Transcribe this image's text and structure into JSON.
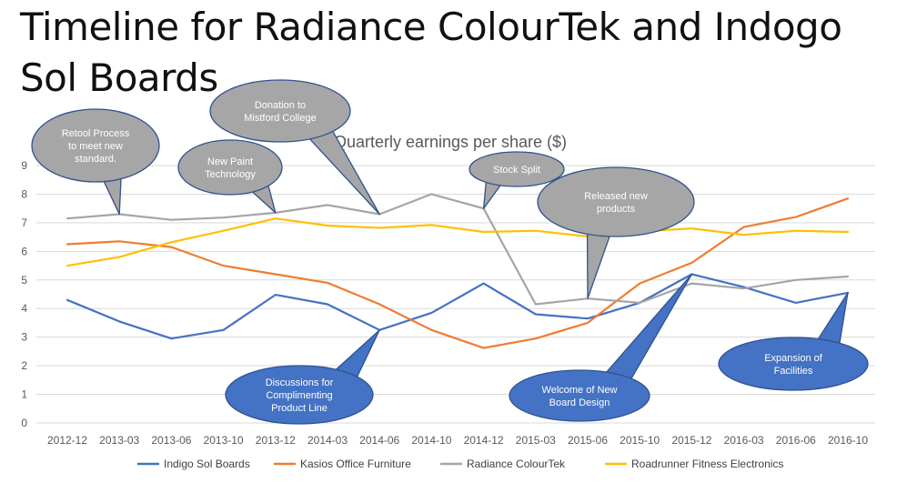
{
  "slide_title": "Timeline for Radiance ColourTek and Indogo Sol Boards",
  "chart_data": {
    "type": "line",
    "title": "Quarterly earnings per share ($)",
    "xlabel": "",
    "ylabel": "",
    "ylim": [
      0,
      9
    ],
    "yticks": [
      0,
      1,
      2,
      3,
      4,
      5,
      6,
      7,
      8,
      9
    ],
    "grid": true,
    "legend_position": "bottom",
    "categories": [
      "2012-12",
      "2013-03",
      "2013-06",
      "2013-10",
      "2013-12",
      "2014-03",
      "2014-06",
      "2014-10",
      "2014-12",
      "2015-03",
      "2015-06",
      "2015-10",
      "2015-12",
      "2016-03",
      "2016-06",
      "2016-10"
    ],
    "series": [
      {
        "name": "Indigo Sol Boards",
        "color": "#4472C4",
        "values": [
          4.3,
          3.55,
          2.95,
          3.25,
          4.48,
          4.15,
          3.25,
          3.85,
          4.88,
          3.8,
          3.65,
          4.2,
          5.2,
          4.75,
          4.2,
          4.55
        ]
      },
      {
        "name": "Kasios Office Furniture",
        "color": "#ED7D31",
        "values": [
          6.25,
          6.35,
          6.15,
          5.5,
          5.2,
          4.9,
          4.15,
          3.25,
          2.62,
          2.95,
          3.5,
          4.88,
          5.6,
          6.85,
          7.2,
          7.85
        ]
      },
      {
        "name": "Radiance ColourTek",
        "color": "#A5A5A5",
        "values": [
          7.15,
          7.3,
          7.1,
          7.18,
          7.35,
          7.62,
          7.3,
          8.0,
          7.5,
          4.15,
          4.35,
          4.2,
          4.88,
          4.7,
          5.0,
          5.12
        ]
      },
      {
        "name": "Roadrunner Fitness Electronics",
        "color": "#FFC000",
        "values": [
          5.5,
          5.8,
          6.32,
          6.72,
          7.15,
          6.9,
          6.82,
          6.92,
          6.68,
          6.72,
          6.52,
          6.7,
          6.8,
          6.58,
          6.72,
          6.68
        ]
      }
    ],
    "annotations": [
      {
        "lines": [
          "Retool Process",
          "to meet new",
          "standard."
        ],
        "style": "gray",
        "category": "2013-03",
        "series": "Radiance ColourTek"
      },
      {
        "lines": [
          "New Paint",
          "Technology"
        ],
        "style": "gray",
        "category": "2013-12",
        "series": "Radiance ColourTek"
      },
      {
        "lines": [
          "Donation to",
          "Mistford College"
        ],
        "style": "gray",
        "category": "2014-06",
        "series": "Radiance ColourTek"
      },
      {
        "lines": [
          "Stock Split"
        ],
        "style": "gray",
        "category": "2014-12",
        "series": "Radiance ColourTek"
      },
      {
        "lines": [
          "Released new",
          "products"
        ],
        "style": "gray",
        "category": "2015-06",
        "series": "Radiance ColourTek"
      },
      {
        "lines": [
          "Discussions for",
          "Complimenting",
          "Product Line"
        ],
        "style": "blue",
        "category": "2014-06",
        "series": "Indigo Sol Boards"
      },
      {
        "lines": [
          "Welcome of New",
          "Board Design"
        ],
        "style": "blue",
        "category": "2015-12",
        "series": "Indigo Sol Boards"
      },
      {
        "lines": [
          "Expansion of",
          "Facilities"
        ],
        "style": "blue",
        "category": "2016-10",
        "series": "Indigo Sol Boards"
      }
    ],
    "callout_colors": {
      "gray_fill": "#A6A6A6",
      "gray_stroke": "#2F528F",
      "gray_text": "#FFFFFF",
      "blue_fill": "#4472C4",
      "blue_stroke": "#2F528F",
      "blue_text": "#FFFFFF"
    }
  }
}
